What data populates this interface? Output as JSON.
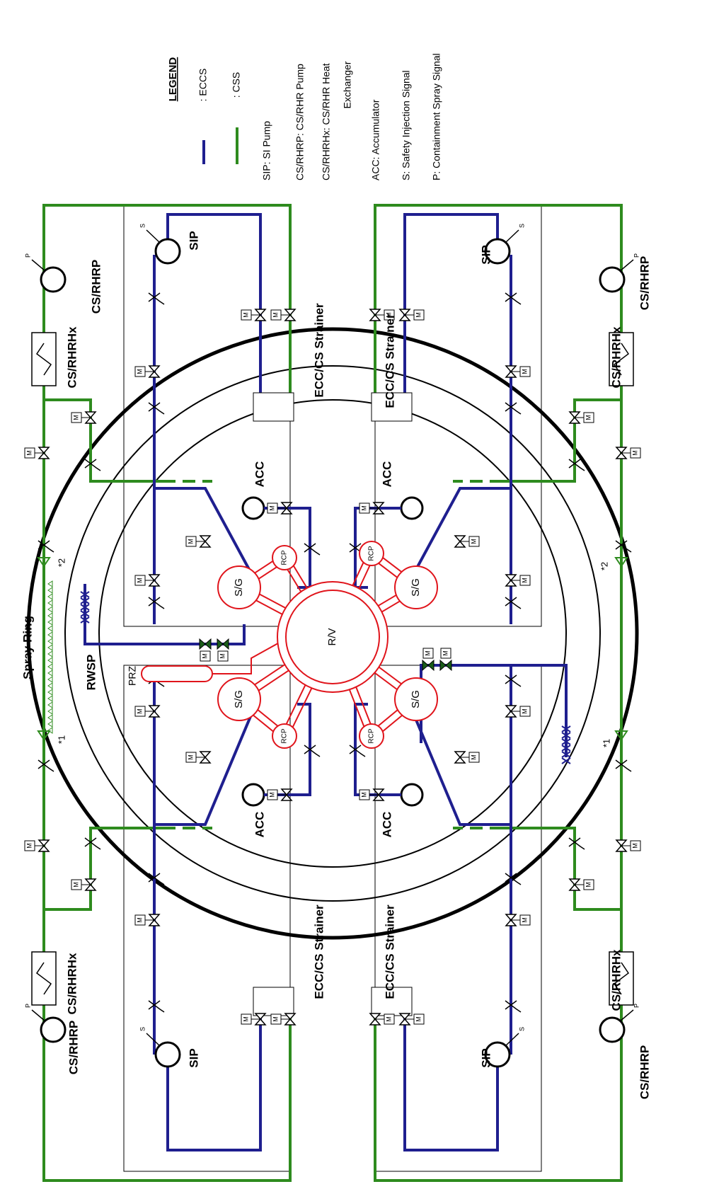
{
  "legend": {
    "title": "LEGEND",
    "items": [
      {
        "label": ": ECCS",
        "color": "#1f1f8f"
      },
      {
        "label": ": CSS",
        "color": "#2e8b1e"
      }
    ],
    "notes": [
      "SIP: SI Pump",
      "CS/RHRP: CS/RHR Pump",
      "CS/RHRHx: CS/RHR Heat",
      "Exchanger",
      "ACC: Accumulator",
      "S: Safety Injection Signal",
      "P: Containment Spray Signal"
    ]
  },
  "labels": {
    "sip": "SIP",
    "pump": "CS/RHRP",
    "hx": "CS/RHRHx",
    "strainer": "ECC/CS Strainer",
    "acc": "ACC",
    "sg": "S/G",
    "rcp": "RCP",
    "rv": "R/V",
    "prz": "PRZ",
    "rwsp": "RWSP",
    "spray": "Spray Ring",
    "n1": "*1",
    "n2": "*2",
    "s": "S",
    "p": "P",
    "m": "M"
  }
}
